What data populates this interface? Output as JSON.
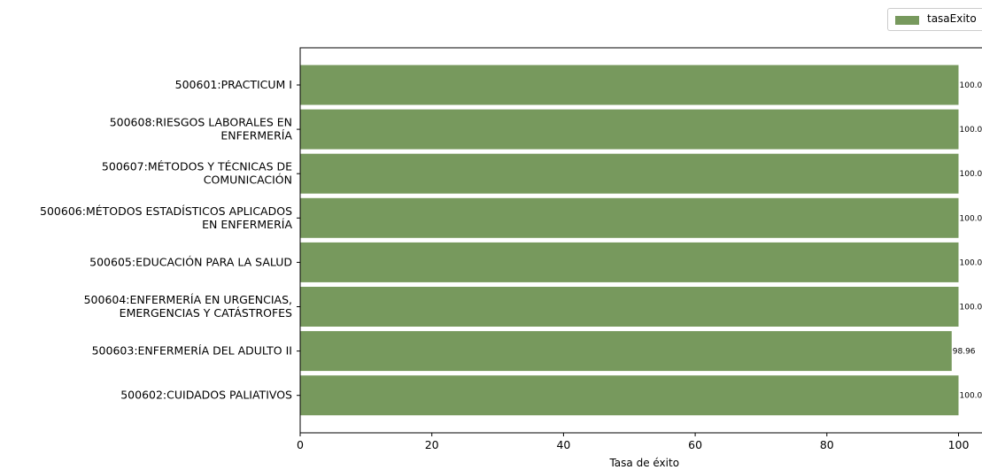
{
  "colors": {
    "bar": "#77995d",
    "axis": "#000000",
    "background": "#ffffff"
  },
  "chart_data": {
    "type": "bar",
    "orientation": "horizontal",
    "title": "",
    "xlabel": "Tasa de éxito",
    "ylabel": "",
    "xlim": [
      0,
      100
    ],
    "xticks": [
      "0",
      "20",
      "40",
      "60",
      "80",
      "100"
    ],
    "grid": false,
    "legend_position": "top-right",
    "categories": [
      "500601:PRACTICUM I",
      "500608:RIESGOS LABORALES EN\nENFERMERÍA",
      "500607:MÉTODOS Y TÉCNICAS DE\nCOMUNICACIÓN",
      "500606:MÉTODOS ESTADÍSTICOS APLICADOS\nEN ENFERMERÍA",
      "500605:EDUCACIÓN PARA LA SALUD",
      "500604:ENFERMERÍA EN URGENCIAS,\nEMERGENCIAS Y CATÁSTROFES",
      "500603:ENFERMERÍA DEL ADULTO II",
      "500602:CUIDADOS PALIATIVOS"
    ],
    "series": [
      {
        "name": "tasaExito",
        "values": [
          100.0,
          100.0,
          100.0,
          100.0,
          100.0,
          100.0,
          98.96,
          100.0
        ],
        "data_labels": [
          "100.0",
          "100.0",
          "100.0",
          "100.0",
          "100.0",
          "100.0",
          "98.96",
          "100.0"
        ]
      }
    ]
  }
}
